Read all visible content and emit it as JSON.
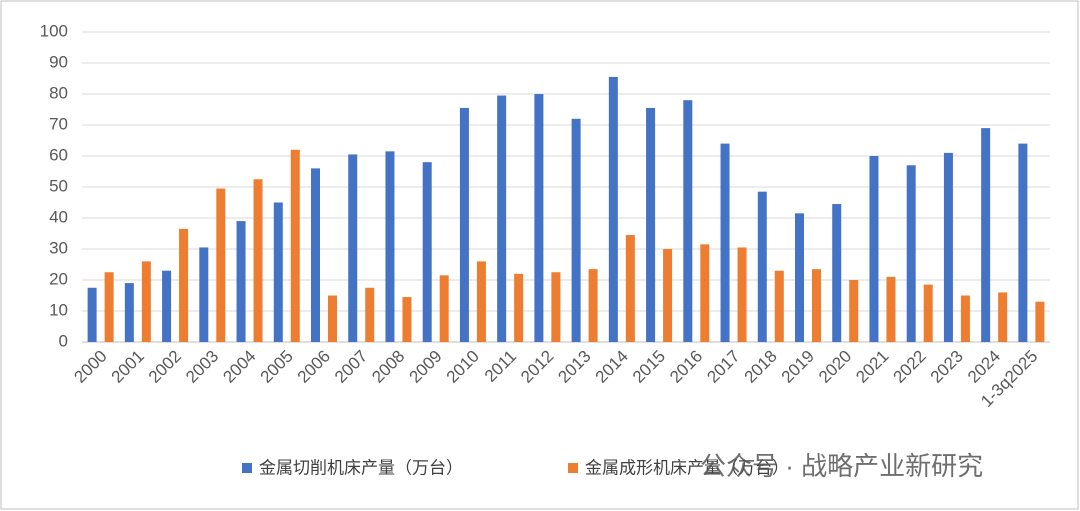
{
  "chart_data": {
    "type": "bar",
    "categories": [
      "2000",
      "2001",
      "2002",
      "2003",
      "2004",
      "2005",
      "2006",
      "2007",
      "2008",
      "2009",
      "2010",
      "2011",
      "2012",
      "2013",
      "2014",
      "2015",
      "2016",
      "2017",
      "2018",
      "2019",
      "2020",
      "2021",
      "2022",
      "2023",
      "2024",
      "1-3q2025"
    ],
    "series": [
      {
        "name": "金属切削机床产量（万台）",
        "color": "#4472c4",
        "values": [
          17.5,
          19,
          23,
          30.5,
          39,
          45,
          56,
          60.5,
          61.5,
          58,
          75.5,
          79.5,
          80,
          72,
          85.5,
          75.5,
          78,
          64,
          48.5,
          41.5,
          44.5,
          60,
          57,
          61,
          69,
          64
        ]
      },
      {
        "name": "金属成形机床产量（万台）",
        "color": "#ed7d31",
        "values": [
          22.5,
          26,
          36.5,
          49.5,
          52.5,
          62,
          15,
          17.5,
          14.5,
          21.5,
          26,
          22,
          22.5,
          23.5,
          34.5,
          30,
          31.5,
          30.5,
          23,
          23.5,
          20,
          21,
          18.5,
          15,
          16,
          13
        ]
      }
    ],
    "ylim": [
      0,
      100
    ],
    "yticks": [
      0,
      10,
      20,
      30,
      40,
      50,
      60,
      70,
      80,
      90,
      100
    ],
    "grid": true,
    "watermark": "公众号 · 战略产业新研究"
  }
}
